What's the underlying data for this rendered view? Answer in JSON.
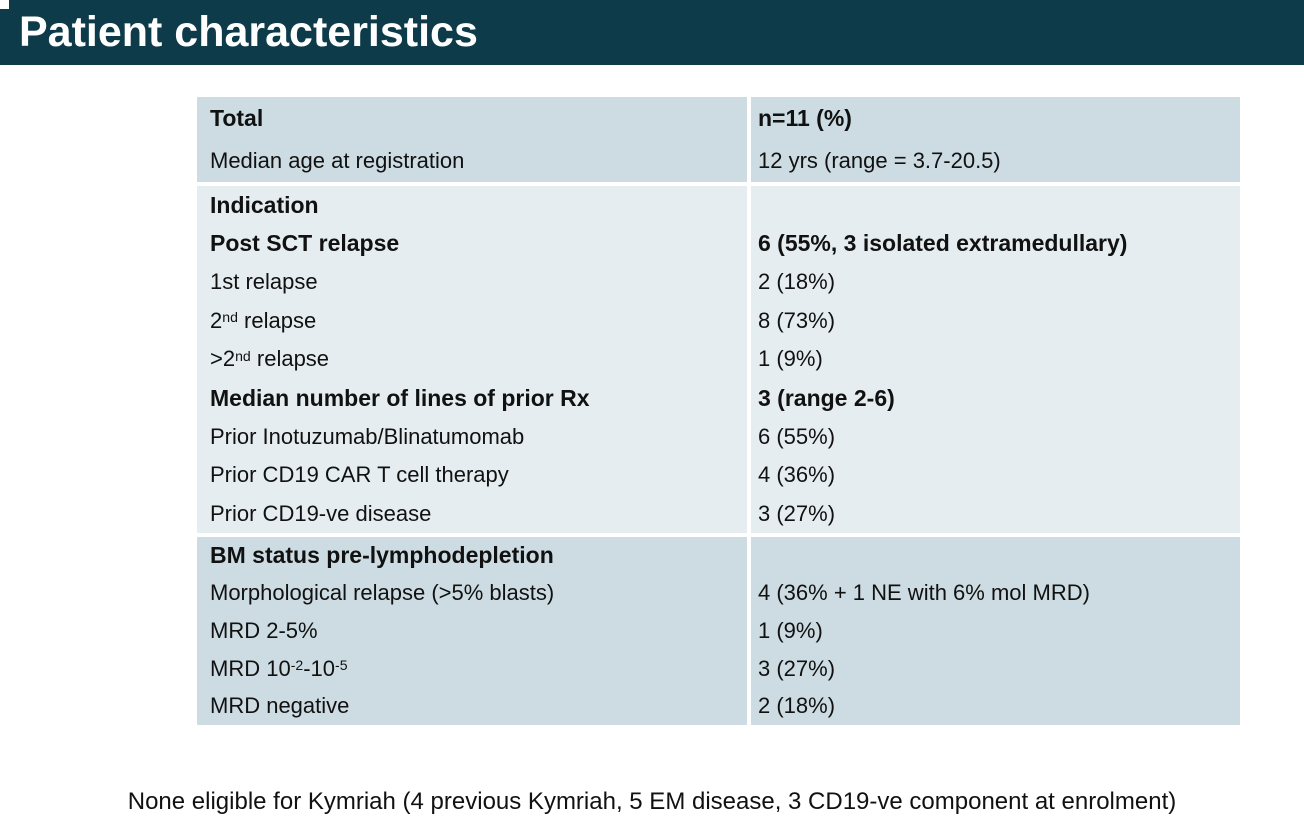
{
  "title": "Patient characteristics",
  "colors": {
    "title_bar": "#0d3b49",
    "band_dark": "#ccdce2",
    "band_light": "#e6edf0",
    "title_text": "#ffffff",
    "body_text": "#111111"
  },
  "table": {
    "header_label": "Total",
    "header_value": "n=11 (%)",
    "sections": [
      {
        "tone": "dark",
        "rows": [
          {
            "label": "Total",
            "value": "n=11 (%)",
            "bold": true
          },
          {
            "label": "Median age at registration",
            "value": "12 yrs (range = 3.7-20.5)",
            "bold": false
          }
        ]
      },
      {
        "tone": "light",
        "rows": [
          {
            "label": "Indication",
            "value": "",
            "bold": true
          },
          {
            "label": "Post SCT relapse",
            "value": "6 (55%, 3 isolated extramedullary)",
            "bold": true
          },
          {
            "label": "1st relapse",
            "value": "2 (18%)",
            "bold": false
          },
          {
            "label": "2^{nd} relapse",
            "value": "8 (73%)",
            "bold": false
          },
          {
            "label": ">2^{nd} relapse",
            "value": "1 (9%)",
            "bold": false
          },
          {
            "label": "Median number of lines of prior Rx",
            "value": "3 (range 2-6)",
            "bold": true
          },
          {
            "label": "Prior Inotuzumab/Blinatumomab",
            "value": "6 (55%)",
            "bold": false
          },
          {
            "label": "Prior CD19 CAR T cell therapy",
            "value": "4 (36%)",
            "bold": false
          },
          {
            "label": "Prior CD19-ve disease",
            "value": "3 (27%)",
            "bold": false
          }
        ]
      },
      {
        "tone": "dark",
        "rows": [
          {
            "label": "BM status pre-lymphodepletion",
            "value": "",
            "bold": true
          },
          {
            "label": "Morphological relapse (>5% blasts)",
            "value": "4 (36% + 1 NE with 6% mol MRD)",
            "bold": false
          },
          {
            "label": "MRD 2-5%",
            "value": "1 (9%)",
            "bold": false
          },
          {
            "label": "MRD 10^{-2}-10^{-5}",
            "value": "3 (27%)",
            "bold": false
          },
          {
            "label": "MRD negative",
            "value": "2 (18%)",
            "bold": false
          }
        ]
      }
    ]
  },
  "footnote": "None eligible for Kymriah (4 previous Kymriah, 5 EM disease, 3 CD19-ve component at enrolment)"
}
